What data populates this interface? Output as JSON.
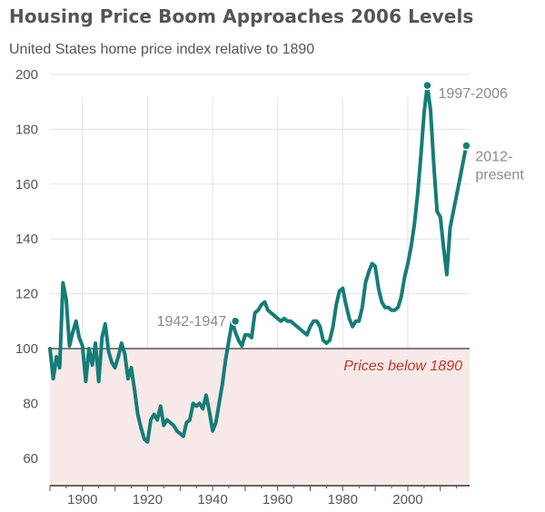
{
  "header": {
    "title": "Housing Price Boom Approaches 2006 Levels",
    "subtitle": "United States home price index relative to 1890"
  },
  "colors": {
    "line": "#167c78",
    "shade": "#f7e9e7",
    "baseline": "#555555",
    "below_text": "#c0392b",
    "annotation": "#8a8a8a",
    "grid": "#e3e3e3"
  },
  "chart_data": {
    "type": "line",
    "title": "Housing Price Boom Approaches 2006 Levels",
    "subtitle": "United States home price index relative to 1890",
    "xlabel": "",
    "ylabel": "",
    "xlim": [
      1890,
      2019
    ],
    "ylim": [
      50,
      200
    ],
    "x_ticks": [
      1900,
      1920,
      1940,
      1960,
      1980,
      2000
    ],
    "y_ticks": [
      60,
      80,
      100,
      120,
      140,
      160,
      180,
      200
    ],
    "grid": true,
    "baseline": 100,
    "shaded_region_label": "Prices below 1890",
    "series": [
      {
        "name": "",
        "points": [
          [
            1890,
            100
          ],
          [
            1891,
            89
          ],
          [
            1892,
            97
          ],
          [
            1893,
            93
          ],
          [
            1894,
            124
          ],
          [
            1895,
            118
          ],
          [
            1896,
            101
          ],
          [
            1897,
            106
          ],
          [
            1898,
            110
          ],
          [
            1899,
            104
          ],
          [
            1900,
            101
          ],
          [
            1901,
            88
          ],
          [
            1902,
            100
          ],
          [
            1903,
            94
          ],
          [
            1904,
            102
          ],
          [
            1905,
            88
          ],
          [
            1906,
            104
          ],
          [
            1907,
            109
          ],
          [
            1908,
            99
          ],
          [
            1909,
            95
          ],
          [
            1910,
            93
          ],
          [
            1911,
            97
          ],
          [
            1912,
            102
          ],
          [
            1913,
            98
          ],
          [
            1914,
            89
          ],
          [
            1915,
            93
          ],
          [
            1916,
            85
          ],
          [
            1917,
            76
          ],
          [
            1918,
            71
          ],
          [
            1919,
            67
          ],
          [
            1920,
            66
          ],
          [
            1921,
            74
          ],
          [
            1922,
            76
          ],
          [
            1923,
            74
          ],
          [
            1924,
            79
          ],
          [
            1925,
            72
          ],
          [
            1926,
            74
          ],
          [
            1927,
            73
          ],
          [
            1928,
            72
          ],
          [
            1929,
            70
          ],
          [
            1930,
            69
          ],
          [
            1931,
            68
          ],
          [
            1932,
            73
          ],
          [
            1933,
            74
          ],
          [
            1934,
            80
          ],
          [
            1935,
            79
          ],
          [
            1936,
            80
          ],
          [
            1937,
            78
          ],
          [
            1938,
            83
          ],
          [
            1939,
            77
          ],
          [
            1940,
            70
          ],
          [
            1941,
            73
          ],
          [
            1942,
            80
          ],
          [
            1943,
            87
          ],
          [
            1944,
            96
          ],
          [
            1945,
            103
          ],
          [
            1946,
            110
          ],
          [
            1947,
            106
          ],
          [
            1948,
            103
          ],
          [
            1949,
            101
          ],
          [
            1950,
            105
          ],
          [
            1951,
            105
          ],
          [
            1952,
            104
          ],
          [
            1953,
            113
          ],
          [
            1954,
            114
          ],
          [
            1955,
            116
          ],
          [
            1956,
            117
          ],
          [
            1957,
            114
          ],
          [
            1958,
            113
          ],
          [
            1959,
            112
          ],
          [
            1960,
            111
          ],
          [
            1961,
            110
          ],
          [
            1962,
            111
          ],
          [
            1963,
            110
          ],
          [
            1964,
            110
          ],
          [
            1965,
            109
          ],
          [
            1966,
            108
          ],
          [
            1967,
            107
          ],
          [
            1968,
            106
          ],
          [
            1969,
            105
          ],
          [
            1970,
            108
          ],
          [
            1971,
            110
          ],
          [
            1972,
            110
          ],
          [
            1973,
            108
          ],
          [
            1974,
            103
          ],
          [
            1975,
            102
          ],
          [
            1976,
            103
          ],
          [
            1977,
            108
          ],
          [
            1978,
            116
          ],
          [
            1979,
            121
          ],
          [
            1980,
            122
          ],
          [
            1981,
            116
          ],
          [
            1982,
            111
          ],
          [
            1983,
            108
          ],
          [
            1984,
            110
          ],
          [
            1985,
            110
          ],
          [
            1986,
            115
          ],
          [
            1987,
            124
          ],
          [
            1988,
            128
          ],
          [
            1989,
            131
          ],
          [
            1990,
            130
          ],
          [
            1991,
            122
          ],
          [
            1992,
            117
          ],
          [
            1993,
            115
          ],
          [
            1994,
            115
          ],
          [
            1995,
            114
          ],
          [
            1996,
            114
          ],
          [
            1997,
            115
          ],
          [
            1998,
            119
          ],
          [
            1999,
            126
          ],
          [
            2000,
            131
          ],
          [
            2001,
            137
          ],
          [
            2002,
            145
          ],
          [
            2003,
            156
          ],
          [
            2004,
            170
          ],
          [
            2005,
            186
          ],
          [
            2006,
            196
          ],
          [
            2007,
            187
          ],
          [
            2008,
            167
          ],
          [
            2009,
            150
          ],
          [
            2010,
            148
          ],
          [
            2011,
            137
          ],
          [
            2012,
            127
          ],
          [
            2013,
            144
          ],
          [
            2014,
            150
          ],
          [
            2015,
            156
          ],
          [
            2016,
            162
          ],
          [
            2017,
            168
          ],
          [
            2018,
            174
          ]
        ]
      }
    ],
    "annotations": [
      {
        "text": "1942-1947",
        "x": 1947,
        "y": 110
      },
      {
        "text": "1997-2006",
        "x": 2006,
        "y": 196
      },
      {
        "text": "2012-",
        "text2": "present",
        "x": 2018,
        "y": 174
      }
    ]
  }
}
